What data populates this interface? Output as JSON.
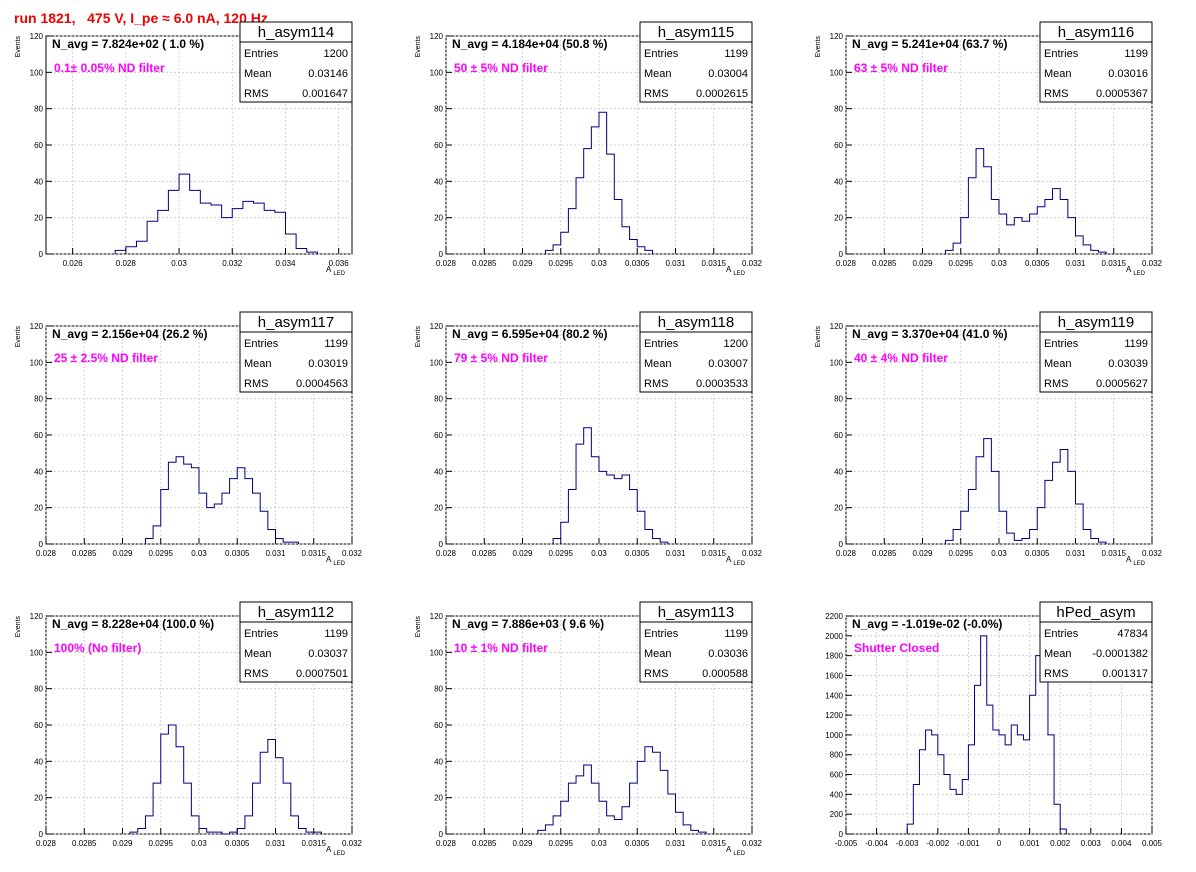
{
  "page_title": "run 1821,   475 V, I_pe ≈ 6.0 nA, 120 Hz",
  "colors": {
    "hist": "#000080",
    "annotation": "#ff00ff",
    "title": "#ee0000",
    "grid": "#c8c8c8"
  },
  "chart_data": [
    {
      "type": "histogram",
      "name": "h_asym114",
      "nstat": "N_avg = 7.824e+02 ( 1.0 %)",
      "note": "0.1± 0.05% ND filter",
      "stats": {
        "Entries": "1200",
        "Mean": "0.03146",
        "RMS": "0.001647"
      },
      "xlabel": "A",
      "xlabel_sub": "LED",
      "ylabel": "Events",
      "xlim": [
        0.025,
        0.0365
      ],
      "ylim": [
        0,
        120
      ],
      "xticks": [
        "0.026",
        "0.028",
        "0.03",
        "0.032",
        "0.034",
        "0.036"
      ],
      "yticks": [
        "0",
        "20",
        "40",
        "60",
        "80",
        "100",
        "120"
      ],
      "x": [
        0.0278,
        0.0282,
        0.0286,
        0.029,
        0.0294,
        0.0298,
        0.0302,
        0.0306,
        0.031,
        0.0314,
        0.0318,
        0.0322,
        0.0326,
        0.033,
        0.0334,
        0.0338,
        0.0342,
        0.0346,
        0.035
      ],
      "values": [
        2,
        4,
        7,
        18,
        24,
        35,
        44,
        35,
        28,
        27,
        20,
        25,
        29,
        28,
        24,
        23,
        11,
        3,
        1
      ]
    },
    {
      "type": "histogram",
      "name": "h_asym115",
      "nstat": "N_avg = 4.184e+04 (50.8 %)",
      "note": "50 ± 5% ND filter",
      "stats": {
        "Entries": "1199",
        "Mean": "0.03004",
        "RMS": "0.0002615"
      },
      "xlabel": "A",
      "xlabel_sub": "LED",
      "ylabel": "Events",
      "xlim": [
        0.028,
        0.032
      ],
      "ylim": [
        0,
        120
      ],
      "xticks": [
        "0.028",
        "0.0285",
        "0.029",
        "0.0295",
        "0.03",
        "0.0305",
        "0.031",
        "0.0315",
        "0.032"
      ],
      "yticks": [
        "0",
        "20",
        "40",
        "60",
        "80",
        "100",
        "120"
      ],
      "x": [
        0.02935,
        0.02945,
        0.02955,
        0.02965,
        0.02975,
        0.02985,
        0.02995,
        0.03005,
        0.03015,
        0.03025,
        0.03035,
        0.03045,
        0.03055,
        0.03065
      ],
      "values": [
        2,
        5,
        12,
        25,
        42,
        58,
        70,
        78,
        55,
        30,
        15,
        8,
        4,
        2
      ]
    },
    {
      "type": "histogram",
      "name": "h_asym116",
      "nstat": "N_avg = 5.241e+04 (63.7 %)",
      "note": "63 ± 5% ND filter",
      "stats": {
        "Entries": "1199",
        "Mean": "0.03016",
        "RMS": "0.0005367"
      },
      "xlabel": "A",
      "xlabel_sub": "LED",
      "ylabel": "Events",
      "xlim": [
        0.028,
        0.032
      ],
      "ylim": [
        0,
        120
      ],
      "xticks": [
        "0.028",
        "0.0285",
        "0.029",
        "0.0295",
        "0.03",
        "0.0305",
        "0.031",
        "0.0315",
        "0.032"
      ],
      "yticks": [
        "0",
        "20",
        "40",
        "60",
        "80",
        "100",
        "120"
      ],
      "x": [
        0.02935,
        0.02945,
        0.02955,
        0.02965,
        0.02975,
        0.02985,
        0.02995,
        0.03005,
        0.03015,
        0.03025,
        0.03035,
        0.03045,
        0.03055,
        0.03065,
        0.03075,
        0.03085,
        0.03095,
        0.03105,
        0.03115,
        0.03125,
        0.03135
      ],
      "values": [
        2,
        6,
        20,
        42,
        58,
        48,
        30,
        22,
        16,
        20,
        18,
        22,
        26,
        30,
        36,
        30,
        20,
        10,
        5,
        2,
        1
      ]
    },
    {
      "type": "histogram",
      "name": "h_asym117",
      "nstat": "N_avg = 2.156e+04 (26.2 %)",
      "note": "25 ± 2.5% ND filter",
      "stats": {
        "Entries": "1199",
        "Mean": "0.03019",
        "RMS": "0.0004563"
      },
      "xlabel": "A",
      "xlabel_sub": "LED",
      "ylabel": "Events",
      "xlim": [
        0.028,
        0.032
      ],
      "ylim": [
        0,
        120
      ],
      "xticks": [
        "0.028",
        "0.0285",
        "0.029",
        "0.0295",
        "0.03",
        "0.0305",
        "0.031",
        "0.0315",
        "0.032"
      ],
      "yticks": [
        "0",
        "20",
        "40",
        "60",
        "80",
        "100",
        "120"
      ],
      "x": [
        0.02935,
        0.02945,
        0.02955,
        0.02965,
        0.02975,
        0.02985,
        0.02995,
        0.03005,
        0.03015,
        0.03025,
        0.03035,
        0.03045,
        0.03055,
        0.03065,
        0.03075,
        0.03085,
        0.03095,
        0.03105,
        0.03115,
        0.03125
      ],
      "values": [
        3,
        10,
        30,
        45,
        48,
        44,
        42,
        28,
        20,
        22,
        28,
        36,
        42,
        36,
        28,
        18,
        8,
        3,
        1,
        1
      ]
    },
    {
      "type": "histogram",
      "name": "h_asym118",
      "nstat": "N_avg = 6.595e+04 (80.2 %)",
      "note": "79 ± 5% ND filter",
      "stats": {
        "Entries": "1200",
        "Mean": "0.03007",
        "RMS": "0.0003533"
      },
      "xlabel": "A",
      "xlabel_sub": "LED",
      "ylabel": "Events",
      "xlim": [
        0.028,
        0.032
      ],
      "ylim": [
        0,
        120
      ],
      "xticks": [
        "0.028",
        "0.0285",
        "0.029",
        "0.0295",
        "0.03",
        "0.0305",
        "0.031",
        "0.0315",
        "0.032"
      ],
      "yticks": [
        "0",
        "20",
        "40",
        "60",
        "80",
        "100",
        "120"
      ],
      "x": [
        0.02945,
        0.02955,
        0.02965,
        0.02975,
        0.02985,
        0.02995,
        0.03005,
        0.03015,
        0.03025,
        0.03035,
        0.03045,
        0.03055,
        0.03065,
        0.03075,
        0.03085
      ],
      "values": [
        3,
        12,
        30,
        55,
        64,
        48,
        40,
        38,
        36,
        38,
        30,
        18,
        8,
        3,
        1
      ]
    },
    {
      "type": "histogram",
      "name": "h_asym119",
      "nstat": "N_avg = 3.370e+04 (41.0 %)",
      "note": "40 ± 4% ND filter",
      "stats": {
        "Entries": "1199",
        "Mean": "0.03039",
        "RMS": "0.0005627"
      },
      "xlabel": "A",
      "xlabel_sub": "LED",
      "ylabel": "Events",
      "xlim": [
        0.028,
        0.032
      ],
      "ylim": [
        0,
        120
      ],
      "xticks": [
        "0.028",
        "0.0285",
        "0.029",
        "0.0295",
        "0.03",
        "0.0305",
        "0.031",
        "0.0315",
        "0.032"
      ],
      "yticks": [
        "0",
        "20",
        "40",
        "60",
        "80",
        "100",
        "120"
      ],
      "x": [
        0.02935,
        0.02945,
        0.02955,
        0.02965,
        0.02975,
        0.02985,
        0.02995,
        0.03005,
        0.03015,
        0.03025,
        0.03035,
        0.03045,
        0.03055,
        0.03065,
        0.03075,
        0.03085,
        0.03095,
        0.03105,
        0.03115,
        0.03125,
        0.03135
      ],
      "values": [
        2,
        8,
        18,
        30,
        48,
        58,
        40,
        18,
        6,
        2,
        3,
        8,
        20,
        35,
        45,
        52,
        40,
        22,
        8,
        3,
        1
      ]
    },
    {
      "type": "histogram",
      "name": "h_asym112",
      "nstat": "N_avg = 8.228e+04 (100.0 %)",
      "note": "100% (No filter)",
      "stats": {
        "Entries": "1199",
        "Mean": "0.03037",
        "RMS": "0.0007501"
      },
      "xlabel": "A",
      "xlabel_sub": "LED",
      "ylabel": "Events",
      "xlim": [
        0.028,
        0.032
      ],
      "ylim": [
        0,
        120
      ],
      "xticks": [
        "0.028",
        "0.0285",
        "0.029",
        "0.0295",
        "0.03",
        "0.0305",
        "0.031",
        "0.0315",
        "0.032"
      ],
      "yticks": [
        "0",
        "20",
        "40",
        "60",
        "80",
        "100",
        "120"
      ],
      "x": [
        0.02915,
        0.02925,
        0.02935,
        0.02945,
        0.02955,
        0.02965,
        0.02975,
        0.02985,
        0.02995,
        0.03005,
        0.03015,
        0.03025,
        0.03035,
        0.03045,
        0.03055,
        0.03065,
        0.03075,
        0.03085,
        0.03095,
        0.03105,
        0.03115,
        0.03125,
        0.03135,
        0.03145,
        0.03155
      ],
      "values": [
        1,
        3,
        10,
        28,
        55,
        60,
        48,
        28,
        10,
        3,
        1,
        1,
        0,
        1,
        3,
        10,
        28,
        45,
        52,
        42,
        28,
        10,
        3,
        1,
        1
      ]
    },
    {
      "type": "histogram",
      "name": "h_asym113",
      "nstat": "N_avg = 7.886e+03 ( 9.6 %)",
      "note": "10 ± 1% ND filter",
      "stats": {
        "Entries": "1199",
        "Mean": "0.03036",
        "RMS": "0.000588"
      },
      "xlabel": "A",
      "xlabel_sub": "LED",
      "ylabel": "Events",
      "xlim": [
        0.028,
        0.032
      ],
      "ylim": [
        0,
        120
      ],
      "xticks": [
        "0.028",
        "0.0285",
        "0.029",
        "0.0295",
        "0.03",
        "0.0305",
        "0.031",
        "0.0315",
        "0.032"
      ],
      "yticks": [
        "0",
        "20",
        "40",
        "60",
        "80",
        "100",
        "120"
      ],
      "x": [
        0.02925,
        0.02935,
        0.02945,
        0.02955,
        0.02965,
        0.02975,
        0.02985,
        0.02995,
        0.03005,
        0.03015,
        0.03025,
        0.03035,
        0.03045,
        0.03055,
        0.03065,
        0.03075,
        0.03085,
        0.03095,
        0.03105,
        0.03115,
        0.03125,
        0.03135
      ],
      "values": [
        2,
        5,
        10,
        18,
        28,
        32,
        38,
        28,
        18,
        10,
        8,
        15,
        28,
        40,
        48,
        45,
        35,
        22,
        12,
        5,
        2,
        1
      ]
    },
    {
      "type": "histogram",
      "name": "hPed_asym",
      "nstat": "N_avg = -1.019e-02 (-0.0%)",
      "note": "Shutter Closed",
      "stats": {
        "Entries": "47834",
        "Mean": "-0.0001382",
        "RMS": "0.001317"
      },
      "xlabel": "",
      "xlabel_sub": "",
      "ylabel": "",
      "xlim": [
        -0.005,
        0.005
      ],
      "ylim": [
        0,
        2200
      ],
      "xticks": [
        "-0.005",
        "-0.004",
        "-0.003",
        "-0.002",
        "-0.001",
        "0",
        "0.001",
        "0.002",
        "0.003",
        "0.004",
        "0.005"
      ],
      "yticks": [
        "0",
        "200",
        "400",
        "600",
        "800",
        "1000",
        "1200",
        "1400",
        "1600",
        "1800",
        "2000",
        "2200"
      ],
      "x": [
        -0.0029,
        -0.0027,
        -0.0025,
        -0.0023,
        -0.0021,
        -0.0019,
        -0.0017,
        -0.0015,
        -0.0013,
        -0.0011,
        -0.0009,
        -0.0007,
        -0.0005,
        -0.0003,
        -0.0001,
        0.0001,
        0.0003,
        0.0005,
        0.0007,
        0.0009,
        0.0011,
        0.0013,
        0.0015,
        0.0017,
        0.0019,
        0.0021
      ],
      "values": [
        100,
        500,
        850,
        1050,
        1000,
        800,
        600,
        450,
        400,
        550,
        900,
        1500,
        2000,
        1300,
        1050,
        1000,
        900,
        1100,
        1000,
        950,
        1400,
        1800,
        1950,
        1000,
        300,
        50
      ]
    }
  ]
}
